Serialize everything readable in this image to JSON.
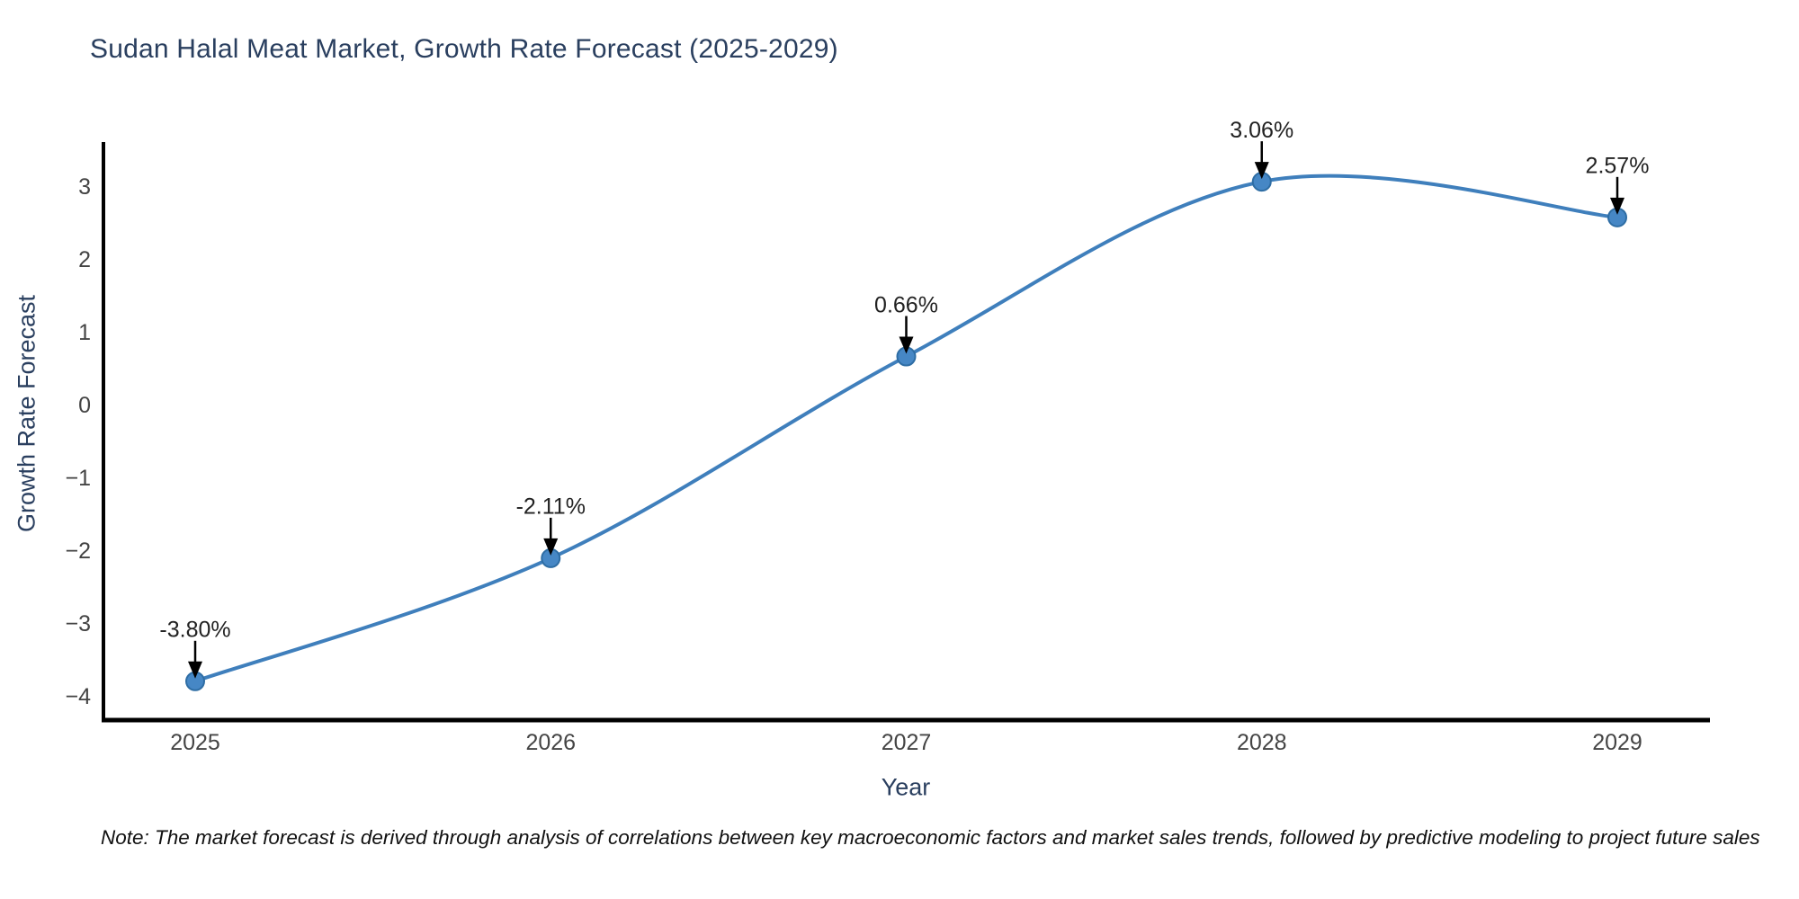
{
  "chart_data": {
    "type": "line",
    "line_shape": "spline",
    "title": "Sudan Halal Meat Market, Growth Rate Forecast (2025-2029)",
    "xlabel": "Year",
    "ylabel": "Growth Rate Forecast",
    "categories": [
      "2025",
      "2026",
      "2027",
      "2028",
      "2029"
    ],
    "values": [
      -3.8,
      -2.11,
      0.66,
      3.06,
      2.57
    ],
    "point_labels": [
      "-3.80%",
      "-2.11%",
      "0.66%",
      "3.06%",
      "2.57%"
    ],
    "yticks": [
      3,
      2,
      1,
      0,
      -1,
      -2,
      -3,
      -4
    ],
    "ytick_labels": [
      "3",
      "2",
      "1",
      "0",
      "−1",
      "−2",
      "−3",
      "−4"
    ],
    "ylim": [
      -4.4,
      3.6
    ],
    "grid": false,
    "legend": "none",
    "annotations_have_arrows": true,
    "colors": {
      "line": "#3f7fbc",
      "marker_fill": "#4687c5",
      "marker_edge": "#2e6da4",
      "axis": "#000000",
      "title_text": "#2a3f5f",
      "axis_title_text": "#2a3f5f",
      "tick_text": "#444444",
      "annotation_text": "#222222",
      "arrow": "#000000",
      "note_text": "#111111",
      "background": "#ffffff"
    }
  },
  "note": "Note: The market forecast is derived through analysis of correlations between key macroeconomic factors and market sales trends, followed by predictive modeling to project future sales"
}
